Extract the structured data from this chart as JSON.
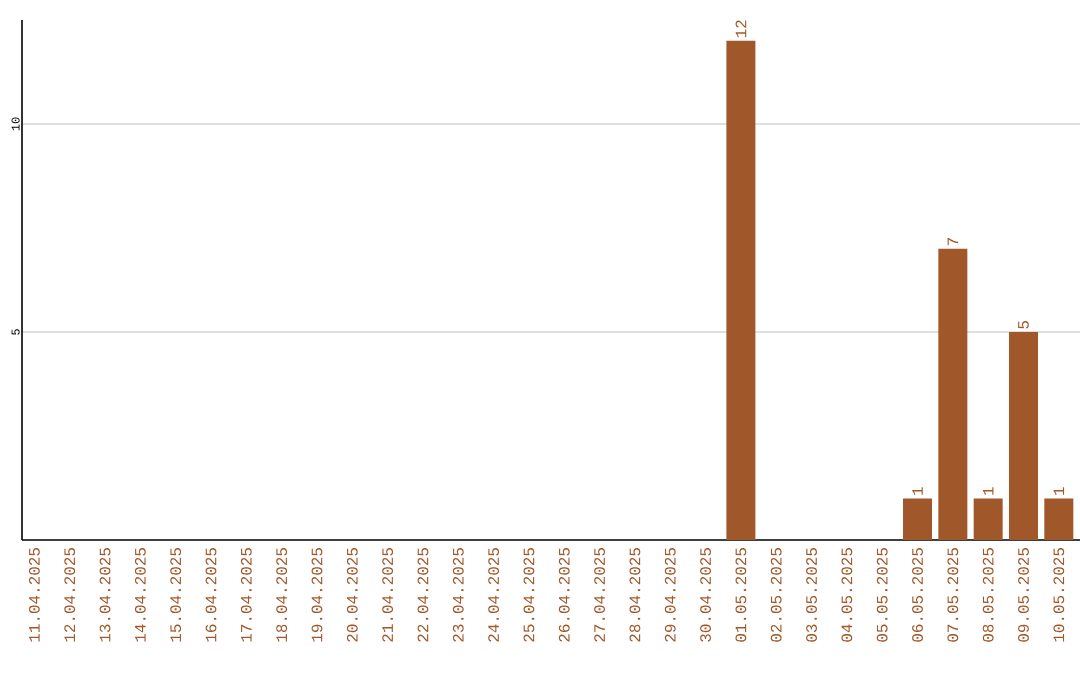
{
  "chart_data": {
    "type": "bar",
    "categories": [
      "11.04.2025",
      "12.04.2025",
      "13.04.2025",
      "14.04.2025",
      "15.04.2025",
      "16.04.2025",
      "17.04.2025",
      "18.04.2025",
      "19.04.2025",
      "20.04.2025",
      "21.04.2025",
      "22.04.2025",
      "23.04.2025",
      "24.04.2025",
      "25.04.2025",
      "26.04.2025",
      "27.04.2025",
      "28.04.2025",
      "29.04.2025",
      "30.04.2025",
      "01.05.2025",
      "02.05.2025",
      "03.05.2025",
      "04.05.2025",
      "05.05.2025",
      "06.05.2025",
      "07.05.2025",
      "08.05.2025",
      "09.05.2025",
      "10.05.2025"
    ],
    "values": [
      0,
      0,
      0,
      0,
      0,
      0,
      0,
      0,
      0,
      0,
      0,
      0,
      0,
      0,
      0,
      0,
      0,
      0,
      0,
      0,
      12,
      0,
      0,
      0,
      0,
      1,
      7,
      1,
      5,
      1
    ],
    "value_labels": [
      null,
      null,
      null,
      null,
      null,
      null,
      null,
      null,
      null,
      null,
      null,
      null,
      null,
      null,
      null,
      null,
      null,
      null,
      null,
      null,
      "12",
      null,
      null,
      null,
      null,
      "1",
      "7",
      "1",
      "5",
      "1"
    ],
    "color": "#a0582a",
    "ylim": [
      0,
      12.5
    ],
    "yticks": [
      5,
      10
    ],
    "grid": "y"
  }
}
